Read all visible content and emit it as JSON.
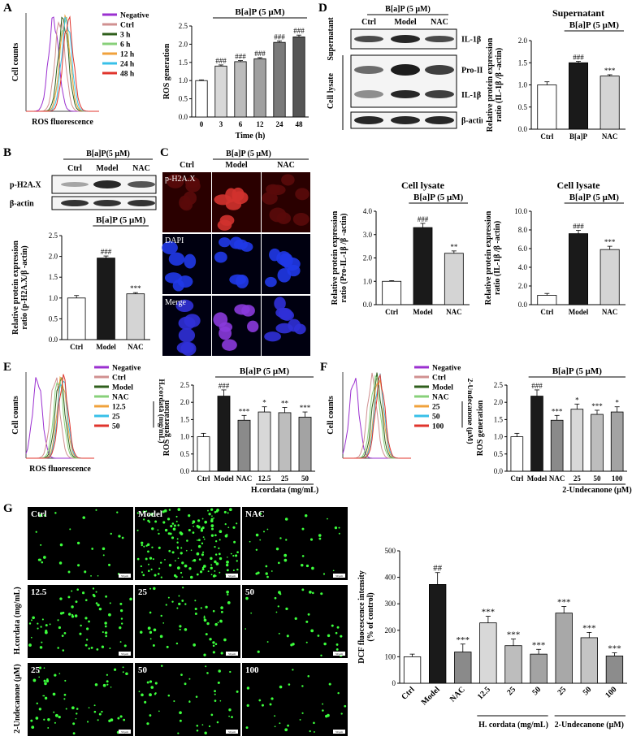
{
  "panels": {
    "A": {
      "letter": "A",
      "hist": {
        "y_label": "Cell counts",
        "x_label": "ROS fluorescence",
        "legend": [
          {
            "label": "Negative",
            "color": "#9b30d0"
          },
          {
            "label": "Ctrl",
            "color": "#d09090"
          },
          {
            "label": "3 h",
            "color": "#2f5f1c"
          },
          {
            "label": "6 h",
            "color": "#88d07a"
          },
          {
            "label": "12 h",
            "color": "#f0a23c"
          },
          {
            "label": "24 h",
            "color": "#38c0e8"
          },
          {
            "label": "48 h",
            "color": "#e0342c"
          }
        ]
      },
      "bar": {
        "header": "B[a]P (5 μM)",
        "ylabel": "ROS generation",
        "xlabel": "Time (h)",
        "ylim": [
          0,
          2.5
        ],
        "yticks": [
          "0.0",
          "0.5",
          "1.0",
          "1.5",
          "2.0",
          "2.5"
        ],
        "categories": [
          "0",
          "3",
          "6",
          "12",
          "24",
          "48"
        ],
        "values": [
          1.0,
          1.4,
          1.52,
          1.6,
          2.05,
          2.2
        ],
        "errors": [
          0.02,
          0.03,
          0.03,
          0.03,
          0.04,
          0.05
        ],
        "fills": [
          "#ffffff",
          "#d8d8d8",
          "#bcbcbc",
          "#a0a0a0",
          "#7a7a7a",
          "#555555"
        ],
        "sig": [
          "",
          "###",
          "###",
          "###",
          "###",
          "###"
        ]
      }
    },
    "B": {
      "letter": "B",
      "blot": {
        "header": "B[a]P(5 μM)",
        "lanes": [
          "Ctrl",
          "Model",
          "NAC"
        ],
        "rows": [
          "p-H2A.X",
          "β-actin"
        ]
      },
      "bar": {
        "header": "B[a]P (5 μM)",
        "ylabel": "Relative protein expression ratio (p-H2A.X/β -actin)",
        "ylim": [
          0,
          2.5
        ],
        "yticks": [
          "0.0",
          "0.5",
          "1.0",
          "1.5",
          "2.0",
          "2.5"
        ],
        "categories": [
          "Ctrl",
          "Model",
          "NAC"
        ],
        "values": [
          1.0,
          1.96,
          1.1
        ],
        "errors": [
          0.06,
          0.05,
          0.03
        ],
        "fills": [
          "#ffffff",
          "#1a1a1a",
          "#d4d4d4"
        ],
        "sig": [
          "",
          "###",
          "***"
        ]
      }
    },
    "C": {
      "letter": "C",
      "header": "B[a]P (5 μM)",
      "cols": [
        "Ctrl",
        "Model",
        "NAC"
      ],
      "rows": [
        "p-H2A.X",
        "DAPI",
        "Merge"
      ]
    },
    "D": {
      "letter": "D",
      "blot": {
        "header": "B[a]P (5 μM)",
        "lanes": [
          "Ctrl",
          "Model",
          "NAC"
        ],
        "side_top": "Supernatant",
        "side_bottom": "Cell lysate",
        "rows": [
          "IL-1β",
          "Pro-IL-1β",
          "IL-1β",
          "β-actin"
        ]
      },
      "bar_sup": {
        "title": "Supernatant",
        "header": "B[a]P (5 μM)",
        "ylabel": "Relative protein expression ratio (IL-1β /β -actin)",
        "ylim": [
          0,
          2.0
        ],
        "yticks": [
          "0.0",
          "0.5",
          "1.0",
          "1.5",
          "2.0"
        ],
        "categories": [
          "Ctrl",
          "B[a]P",
          "NAC"
        ],
        "values": [
          1.0,
          1.5,
          1.2
        ],
        "errors": [
          0.07,
          0.03,
          0.03
        ],
        "fills": [
          "#ffffff",
          "#1a1a1a",
          "#d4d4d4"
        ],
        "sig": [
          "",
          "###",
          "***"
        ]
      },
      "bar_pro": {
        "title": "Cell lysate",
        "header": "B[a]P (5 μM)",
        "ylabel": "Relative protein expression ratio (Pro-IL-1β /β -actin)",
        "ylim": [
          0,
          4.0
        ],
        "yticks": [
          "0.0",
          "1.0",
          "2.0",
          "3.0",
          "4.0"
        ],
        "categories": [
          "Ctrl",
          "Model",
          "NAC"
        ],
        "values": [
          1.0,
          3.3,
          2.2
        ],
        "errors": [
          0.03,
          0.18,
          0.1
        ],
        "fills": [
          "#ffffff",
          "#1a1a1a",
          "#d4d4d4"
        ],
        "sig": [
          "",
          "###",
          "**"
        ]
      },
      "bar_il": {
        "title": "Cell lysate",
        "header": "B[a]P (5 μM)",
        "ylabel": "Relative protein expression ratio (IL-1β /β -actin)",
        "ylim": [
          0,
          10.0
        ],
        "yticks": [
          "0.0",
          "2.0",
          "4.0",
          "6.0",
          "8.0",
          "10.0"
        ],
        "categories": [
          "Ctrl",
          "Model",
          "NAC"
        ],
        "values": [
          1.0,
          7.6,
          5.9
        ],
        "errors": [
          0.2,
          0.35,
          0.35
        ],
        "fills": [
          "#ffffff",
          "#1a1a1a",
          "#d4d4d4"
        ],
        "sig": [
          "",
          "###",
          "***"
        ]
      }
    },
    "E": {
      "letter": "E",
      "hist": {
        "y_label": "Cell counts",
        "x_label": "ROS fluorescence",
        "side_label": "H.cordata (mg/mL)",
        "legend": [
          {
            "label": "Negative",
            "color": "#9b30d0"
          },
          {
            "label": "Ctrl",
            "color": "#d09090"
          },
          {
            "label": "Model",
            "color": "#2f5f1c"
          },
          {
            "label": "NAC",
            "color": "#88d07a"
          },
          {
            "label": "12.5",
            "color": "#f0a23c"
          },
          {
            "label": "25",
            "color": "#38c0e8"
          },
          {
            "label": "50",
            "color": "#e0342c"
          }
        ]
      },
      "bar": {
        "header": "B[a]P (5 μM)",
        "ylabel": "ROS generation",
        "xlabel": "H.cordata (mg/mL)",
        "ylim": [
          0,
          2.5
        ],
        "yticks": [
          "0.0",
          "0.5",
          "1.0",
          "1.5",
          "2.0",
          "2.5"
        ],
        "categories": [
          "Ctrl",
          "Model",
          "NAC",
          "12.5",
          "25",
          "50"
        ],
        "values": [
          1.0,
          2.18,
          1.48,
          1.72,
          1.7,
          1.57
        ],
        "errors": [
          0.1,
          0.18,
          0.14,
          0.15,
          0.15,
          0.15
        ],
        "fills": [
          "#ffffff",
          "#1a1a1a",
          "#8a8a8a",
          "#d8d8d8",
          "#bdbdbd",
          "#a3a3a3"
        ],
        "sig": [
          "",
          "###",
          "***",
          "*",
          "**",
          "***"
        ]
      }
    },
    "F": {
      "letter": "F",
      "hist": {
        "y_label": "Cell counts",
        "side_label": "2-Undecanone (μM)",
        "legend": [
          {
            "label": "Negative",
            "color": "#9b30d0"
          },
          {
            "label": "Ctrl",
            "color": "#d09090"
          },
          {
            "label": "Model",
            "color": "#2f5f1c"
          },
          {
            "label": "NAC",
            "color": "#88d07a"
          },
          {
            "label": "25",
            "color": "#f0a23c"
          },
          {
            "label": "50",
            "color": "#38c0e8"
          },
          {
            "label": "100",
            "color": "#e0342c"
          }
        ]
      },
      "bar": {
        "header": "B[a]P (5 μM)",
        "ylabel": "ROS generation",
        "xlabel": "2-Undecanone (μM)",
        "ylim": [
          0,
          2.5
        ],
        "yticks": [
          "0.0",
          "0.5",
          "1.0",
          "1.5",
          "2.0",
          "2.5"
        ],
        "categories": [
          "Ctrl",
          "Model",
          "NAC",
          "25",
          "50",
          "100"
        ],
        "values": [
          1.0,
          2.18,
          1.48,
          1.8,
          1.65,
          1.72
        ],
        "errors": [
          0.1,
          0.18,
          0.14,
          0.15,
          0.12,
          0.15
        ],
        "fills": [
          "#ffffff",
          "#1a1a1a",
          "#8a8a8a",
          "#d8d8d8",
          "#bdbdbd",
          "#a3a3a3"
        ],
        "sig": [
          "",
          "###",
          "***",
          "*",
          "***",
          "*"
        ]
      }
    },
    "G": {
      "letter": "G",
      "tiles": [
        {
          "label": "Ctrl",
          "density": 30
        },
        {
          "label": "Model",
          "density": 170
        },
        {
          "label": "NAC",
          "density": 35
        },
        {
          "label": "12.5",
          "density": 70
        },
        {
          "label": "25",
          "density": 55
        },
        {
          "label": "50",
          "density": 35
        },
        {
          "label": "25",
          "density": 60
        },
        {
          "label": "50",
          "density": 45
        },
        {
          "label": "100",
          "density": 30
        }
      ],
      "row_label_mid": "H.cordata (mg/mL)",
      "row_label_bot": "2-Undecanone (μM)",
      "scale_text": "50 μm",
      "bar": {
        "ylabel": "DCF fluocescence intensity (% of control)",
        "ylim": [
          0,
          500
        ],
        "yticks": [
          "0",
          "100",
          "200",
          "300",
          "400",
          "500"
        ],
        "categories": [
          "Ctrl",
          "Model",
          "NAC",
          "12.5",
          "25",
          "50",
          "25",
          "50",
          "100"
        ],
        "values": [
          100,
          373,
          118,
          228,
          142,
          110,
          265,
          172,
          103
        ],
        "errors": [
          10,
          45,
          30,
          25,
          25,
          18,
          25,
          20,
          12
        ],
        "fills": [
          "#ffffff",
          "#1a1a1a",
          "#8a8a8a",
          "#d8d8d8",
          "#bdbdbd",
          "#a3a3a3",
          "#a8a8a8",
          "#c4c4c4",
          "#8c8c8c"
        ],
        "sig": [
          "",
          "##",
          "***",
          "***",
          "***",
          "***",
          "***",
          "***",
          "***"
        ],
        "group1": "H. cordata (mg/mL)",
        "group2": "2-Undecanone (μM)"
      }
    }
  },
  "chart_data": [
    {
      "type": "bar",
      "categories": [
        "0",
        "3",
        "6",
        "12",
        "24",
        "48"
      ],
      "values": [
        1.0,
        1.4,
        1.52,
        1.6,
        2.05,
        2.2
      ],
      "title": "B[a]P (5 μM)",
      "xlabel": "Time (h)",
      "ylabel": "ROS generation",
      "ylim": [
        0,
        2.5
      ]
    },
    {
      "type": "bar",
      "categories": [
        "Ctrl",
        "Model",
        "NAC"
      ],
      "values": [
        1.0,
        1.96,
        1.1
      ],
      "title": "B[a]P (5 μM)",
      "ylabel": "Relative protein expression ratio (p-H2A.X/β -actin)",
      "ylim": [
        0,
        2.5
      ]
    },
    {
      "type": "bar",
      "categories": [
        "Ctrl",
        "B[a]P",
        "NAC"
      ],
      "values": [
        1.0,
        1.5,
        1.2
      ],
      "title": "Supernatant",
      "ylabel": "Relative protein expression ratio (IL-1β /β -actin)",
      "ylim": [
        0,
        2.0
      ]
    },
    {
      "type": "bar",
      "categories": [
        "Ctrl",
        "Model",
        "NAC"
      ],
      "values": [
        1.0,
        3.3,
        2.2
      ],
      "title": "Cell lysate",
      "ylabel": "Relative protein expression ratio (Pro-IL-1β /β -actin)",
      "ylim": [
        0,
        4.0
      ]
    },
    {
      "type": "bar",
      "categories": [
        "Ctrl",
        "Model",
        "NAC"
      ],
      "values": [
        1.0,
        7.6,
        5.9
      ],
      "title": "Cell lysate",
      "ylabel": "Relative protein expression ratio (IL-1β /β -actin)",
      "ylim": [
        0,
        10.0
      ]
    },
    {
      "type": "bar",
      "categories": [
        "Ctrl",
        "Model",
        "NAC",
        "12.5",
        "25",
        "50"
      ],
      "values": [
        1.0,
        2.18,
        1.48,
        1.72,
        1.7,
        1.57
      ],
      "xlabel": "H.cordata (mg/mL)",
      "ylabel": "ROS generation",
      "ylim": [
        0,
        2.5
      ]
    },
    {
      "type": "bar",
      "categories": [
        "Ctrl",
        "Model",
        "NAC",
        "25",
        "50",
        "100"
      ],
      "values": [
        1.0,
        2.18,
        1.48,
        1.8,
        1.65,
        1.72
      ],
      "xlabel": "2-Undecanone (μM)",
      "ylabel": "ROS generation",
      "ylim": [
        0,
        2.5
      ]
    },
    {
      "type": "bar",
      "categories": [
        "Ctrl",
        "Model",
        "NAC",
        "12.5",
        "25",
        "50",
        "25",
        "50",
        "100"
      ],
      "values": [
        100,
        373,
        118,
        228,
        142,
        110,
        265,
        172,
        103
      ],
      "ylabel": "DCF fluocescence intensity (% of control)",
      "ylim": [
        0,
        500
      ]
    }
  ]
}
